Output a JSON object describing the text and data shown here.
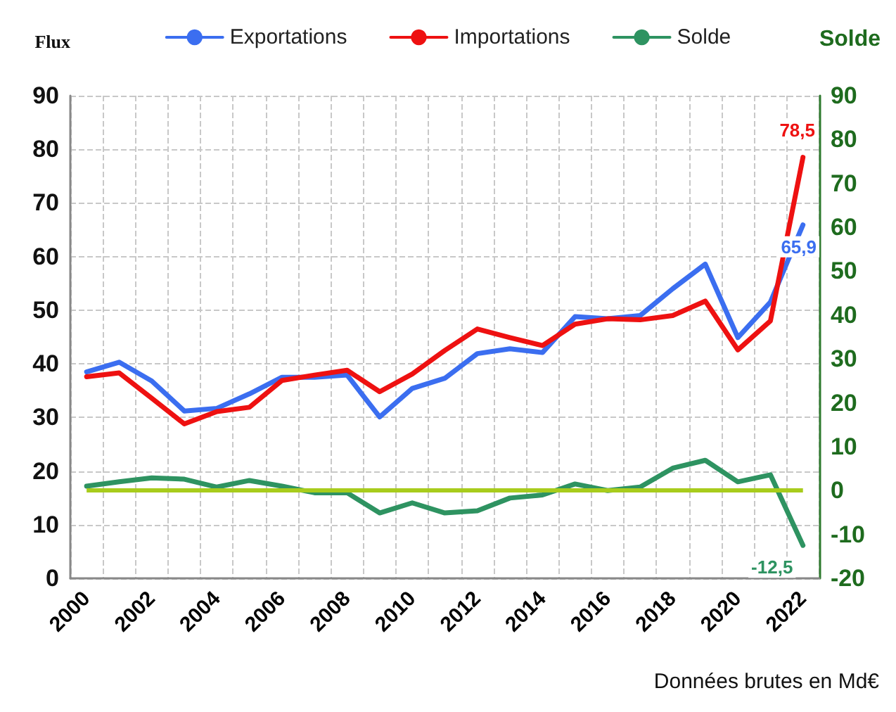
{
  "chart_data": {
    "type": "line",
    "ylabel": "Flux",
    "y2label": "Solde",
    "annotations": [
      "Données brutes en Md€"
    ],
    "categories": [
      "2000",
      null,
      "2002",
      null,
      "2004",
      null,
      "2006",
      null,
      "2008",
      null,
      "2010",
      null,
      "2012",
      null,
      "2014",
      null,
      "2016",
      null,
      "2018",
      null,
      "2020",
      null,
      "2022"
    ],
    "series": [
      {
        "name": "Exportations",
        "color": "#3b6ef0",
        "values": [
          38.5,
          40.3,
          36.8,
          31.2,
          31.7,
          34.4,
          37.5,
          37.5,
          37.9,
          30.1,
          35.4,
          37.3,
          41.9,
          42.8,
          42.1,
          48.8,
          48.4,
          49.0,
          54.0,
          58.6,
          44.9,
          51.5,
          65.9
        ],
        "value_labels": [
          null,
          null,
          null,
          null,
          null,
          null,
          null,
          null,
          null,
          null,
          null,
          null,
          null,
          null,
          null,
          null,
          null,
          null,
          null,
          null,
          null,
          null,
          "65,9"
        ]
      },
      {
        "name": "Importations",
        "color": "#ee1111",
        "values": [
          37.6,
          38.3,
          33.6,
          28.8,
          31.1,
          31.9,
          36.9,
          37.9,
          38.8,
          34.8,
          38.1,
          42.5,
          46.5,
          44.9,
          43.4,
          47.4,
          48.4,
          48.2,
          49.0,
          51.7,
          42.6,
          48.0,
          78.5
        ],
        "value_labels": [
          null,
          null,
          null,
          null,
          null,
          null,
          null,
          null,
          null,
          null,
          null,
          null,
          null,
          null,
          null,
          null,
          null,
          null,
          null,
          null,
          null,
          null,
          "78,5"
        ]
      },
      {
        "name": "Solde",
        "color": "#2e9361",
        "axis": "y2",
        "values": [
          1.0,
          2.0,
          2.9,
          2.6,
          0.8,
          2.3,
          1.0,
          -0.5,
          -0.5,
          -5.1,
          -2.8,
          -5.1,
          -4.6,
          -1.7,
          -1.0,
          1.5,
          0.0,
          0.8,
          5.1,
          6.9,
          2.0,
          3.6,
          -12.5
        ],
        "value_labels": [
          null,
          null,
          null,
          null,
          null,
          null,
          null,
          null,
          null,
          null,
          null,
          null,
          null,
          null,
          null,
          null,
          null,
          null,
          null,
          null,
          null,
          null,
          "-12,5"
        ]
      }
    ],
    "ylim": [
      0,
      90
    ],
    "yticks": [
      0,
      10,
      20,
      30,
      40,
      50,
      60,
      70,
      80,
      90
    ],
    "y2lim": [
      -20,
      90
    ],
    "y2ticks": [
      -20,
      -10,
      0,
      10,
      20,
      30,
      40,
      50,
      60,
      70,
      80,
      90
    ],
    "ref_lines": [
      {
        "axis": "y2",
        "value": 0,
        "color": "#a8cc1c"
      }
    ],
    "grid": true,
    "legend": "top",
    "marker": "none",
    "line_style": "solid"
  }
}
